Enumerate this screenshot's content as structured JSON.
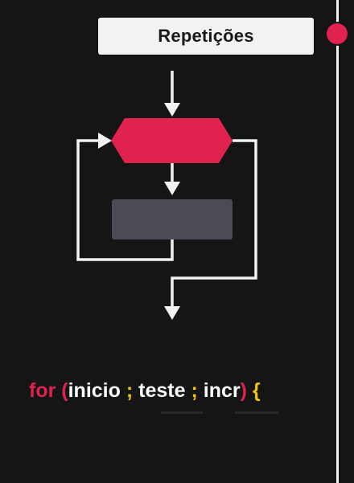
{
  "header": {
    "title": "Repetições"
  },
  "code": {
    "keyword": "for",
    "open_paren": "(",
    "init": "inicio",
    "semicolon_1": ";",
    "test": "teste",
    "semicolon_2": ";",
    "increment": "incr",
    "close_paren": ")",
    "open_brace": "{"
  },
  "colors": {
    "background": "#151515",
    "accent_red": "#e0224e",
    "accent_yellow": "#f1c40f",
    "process_box": "#4a4b55",
    "line_white": "#f2f2f2"
  },
  "icons": {
    "timeline_dot": "timeline-marker-icon"
  }
}
